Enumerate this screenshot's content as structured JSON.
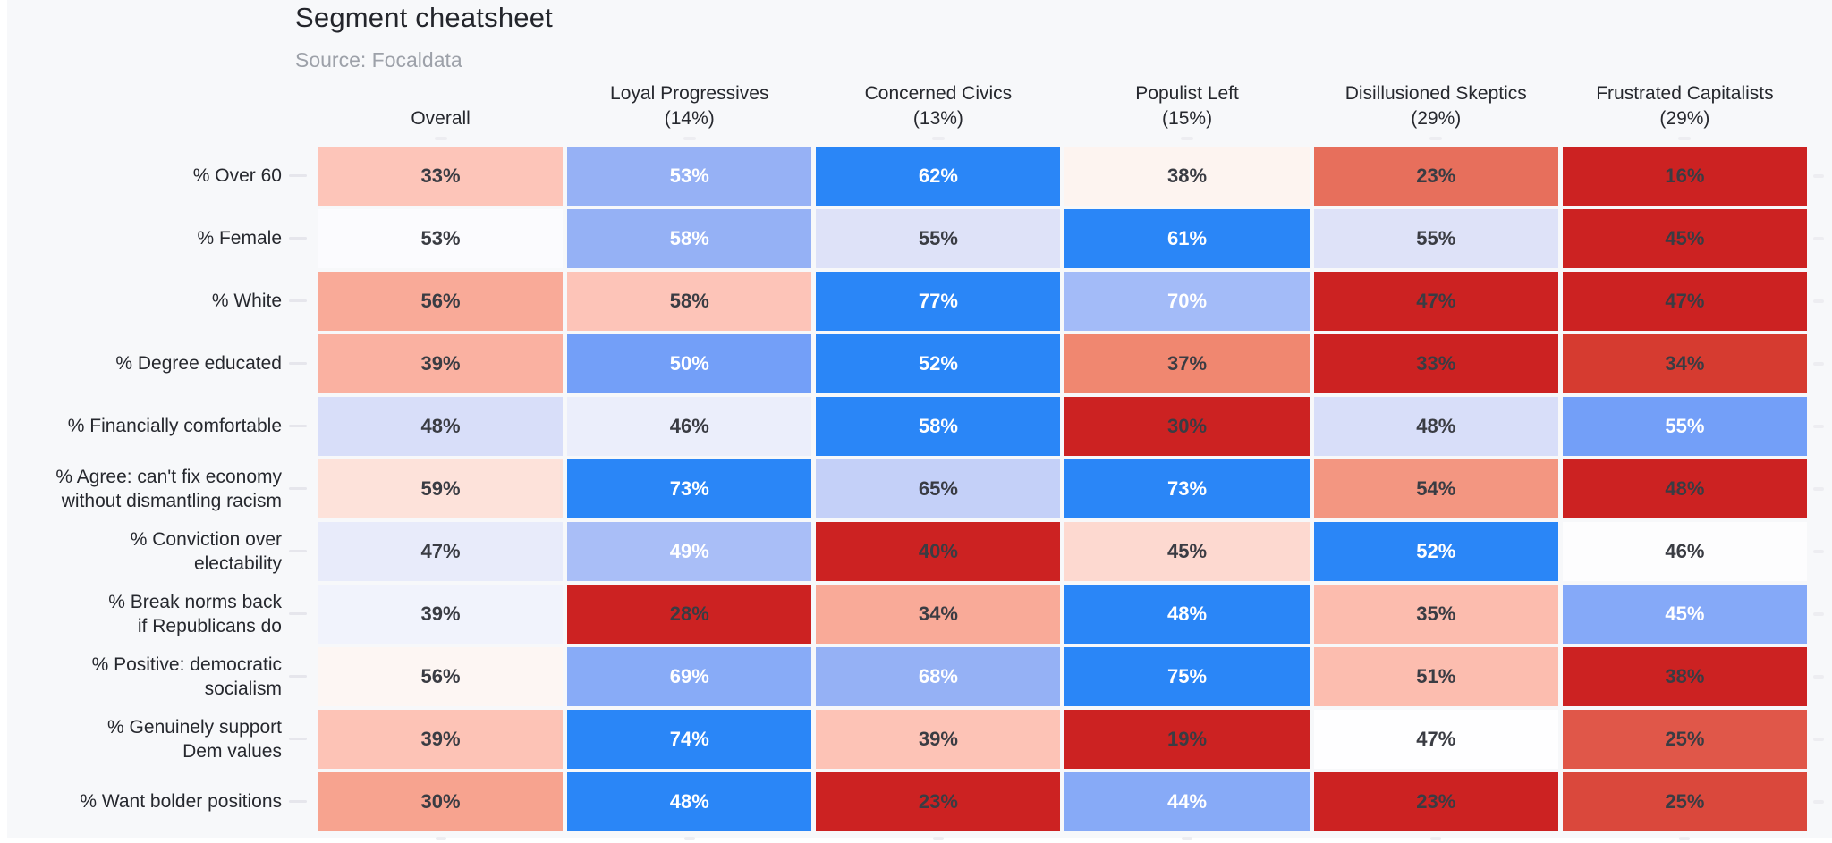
{
  "page": {
    "title": "Segment cheatsheet",
    "source": "Source: Focaldata"
  },
  "colors": {
    "page_background": "#f7f8fa",
    "strong_blue": "#2a86f7",
    "strong_red": "#cc2222",
    "midpoint": "#ffffff",
    "dark_text": "#3a3c43",
    "light_text": "#ffffff",
    "label_text": "#26282e",
    "source_text": "#9da1a9",
    "tick": "#e6e6ec"
  },
  "chart_data": {
    "type": "heatmap",
    "title": "Segment cheatsheet",
    "subtitle": "Source: Focaldata",
    "unit": "%",
    "legend_position": "none",
    "colorscale_note": "diverging red-white-blue, normalized per row (min=red #cc2222, max=blue #2a86f7)",
    "columns": [
      {
        "label": "Overall",
        "sub": ""
      },
      {
        "label": "Loyal Progressives",
        "sub": "(14%)"
      },
      {
        "label": "Concerned Civics",
        "sub": "(13%)"
      },
      {
        "label": "Populist Left",
        "sub": "(15%)"
      },
      {
        "label": "Disillusioned Skeptics",
        "sub": "(29%)"
      },
      {
        "label": "Frustrated Capitalists",
        "sub": "(29%)"
      }
    ],
    "rows": [
      {
        "label": "% Over 60",
        "values": [
          33,
          53,
          62,
          38,
          23,
          16
        ],
        "colors": [
          "#fdc5b9",
          "#96b1f5",
          "#2a86f7",
          "#fdf4f0",
          "#e76f5c",
          "#cc2222"
        ],
        "text": [
          "dark",
          "light",
          "light",
          "dark",
          "dark",
          "dark"
        ]
      },
      {
        "label": "% Female",
        "values": [
          53,
          58,
          55,
          61,
          55,
          45
        ],
        "colors": [
          "#fbfbfe",
          "#95b1f5",
          "#dee2f8",
          "#2a86f7",
          "#dee2f8",
          "#cc2222"
        ],
        "text": [
          "dark",
          "light",
          "dark",
          "light",
          "dark",
          "dark"
        ]
      },
      {
        "label": "% White",
        "values": [
          56,
          58,
          77,
          70,
          47,
          47
        ],
        "colors": [
          "#f9aa98",
          "#fdc4b8",
          "#2a86f7",
          "#a3bbf8",
          "#cc2222",
          "#cc2222"
        ],
        "text": [
          "dark",
          "dark",
          "light",
          "light",
          "dark",
          "dark"
        ]
      },
      {
        "label": "% Degree educated",
        "values": [
          39,
          50,
          52,
          37,
          33,
          34
        ],
        "colors": [
          "#fab1a1",
          "#739ff8",
          "#2a86f7",
          "#f08770",
          "#cc2222",
          "#d63b30"
        ],
        "text": [
          "dark",
          "light",
          "light",
          "dark",
          "dark",
          "dark"
        ]
      },
      {
        "label": "% Financially comfortable",
        "values": [
          48,
          46,
          58,
          30,
          48,
          55
        ],
        "colors": [
          "#d8def9",
          "#ebeefb",
          "#2a86f7",
          "#cc2222",
          "#d8def9",
          "#739ff8"
        ],
        "text": [
          "dark",
          "dark",
          "light",
          "dark",
          "dark",
          "light"
        ]
      },
      {
        "label": "% Agree: can't fix economy\nwithout dismantling racism",
        "values": [
          59,
          73,
          65,
          73,
          54,
          48
        ],
        "colors": [
          "#fde2da",
          "#2a86f7",
          "#c4d0f8",
          "#2a86f7",
          "#f39681",
          "#cc2222"
        ],
        "text": [
          "dark",
          "light",
          "dark",
          "light",
          "dark",
          "dark"
        ]
      },
      {
        "label": "% Conviction over\nelectability",
        "values": [
          47,
          49,
          40,
          45,
          52,
          46
        ],
        "colors": [
          "#e8ebfa",
          "#a9bef7",
          "#cc2222",
          "#fdd9d0",
          "#2a86f7",
          "#fdfdfe"
        ],
        "text": [
          "dark",
          "light",
          "dark",
          "dark",
          "light",
          "dark"
        ]
      },
      {
        "label": "% Break norms back\nif Republicans do",
        "values": [
          39,
          28,
          34,
          48,
          35,
          45
        ],
        "colors": [
          "#f1f3fc",
          "#cc2222",
          "#f9aa98",
          "#2a86f7",
          "#fcbcae",
          "#85a9f8"
        ],
        "text": [
          "dark",
          "dark",
          "dark",
          "light",
          "dark",
          "light"
        ]
      },
      {
        "label": "% Positive: democratic\nsocialism",
        "values": [
          56,
          69,
          68,
          75,
          51,
          38
        ],
        "colors": [
          "#fdf6f3",
          "#88abf7",
          "#95b1f5",
          "#2a86f7",
          "#fcbdaf",
          "#cc2222"
        ],
        "text": [
          "dark",
          "light",
          "light",
          "light",
          "dark",
          "dark"
        ]
      },
      {
        "label": "% Genuinely support\nDem values",
        "values": [
          39,
          74,
          39,
          19,
          47,
          25
        ],
        "colors": [
          "#fdc3b6",
          "#2a86f7",
          "#fdc3b6",
          "#cc2222",
          "#fefeff",
          "#e05749"
        ],
        "text": [
          "dark",
          "light",
          "dark",
          "dark",
          "dark",
          "dark"
        ]
      },
      {
        "label": "% Want bolder positions",
        "values": [
          30,
          48,
          23,
          44,
          23,
          25
        ],
        "colors": [
          "#f7a38f",
          "#2a86f7",
          "#cc2222",
          "#87aaf7",
          "#cc2222",
          "#da483c"
        ],
        "text": [
          "dark",
          "light",
          "dark",
          "light",
          "dark",
          "dark"
        ]
      }
    ]
  }
}
